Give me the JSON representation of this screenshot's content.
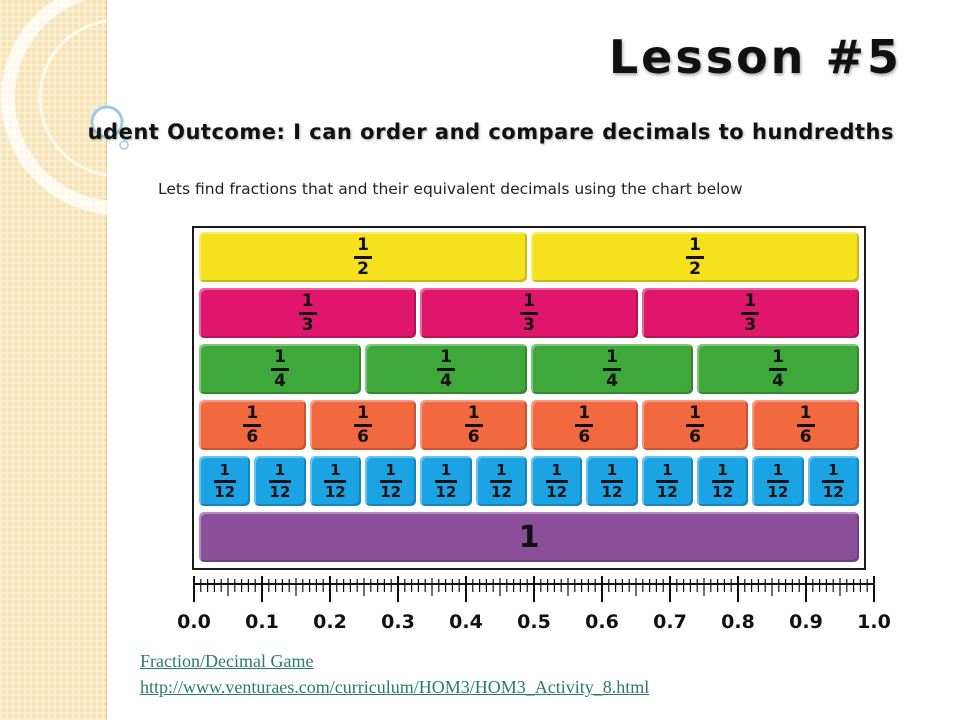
{
  "slide": {
    "title": "Lesson #5",
    "outcome": "udent Outcome: I can order and compare decimals to hundredths",
    "intro": "Lets find fractions that and their equivalent decimals using the chart below"
  },
  "fraction_chart": {
    "rows": [
      {
        "denominator": "2",
        "count": 2,
        "color": "#f5e11c"
      },
      {
        "denominator": "3",
        "count": 3,
        "color": "#e0166c"
      },
      {
        "denominator": "4",
        "count": 4,
        "color": "#3fa83a"
      },
      {
        "denominator": "6",
        "count": 6,
        "color": "#f2683f"
      },
      {
        "denominator": "12",
        "count": 12,
        "color": "#1ba3e3"
      }
    ],
    "numerator": "1",
    "whole": {
      "label": "1",
      "color": "#8b4f9a"
    },
    "ruler_labels": [
      "0.0",
      "0.1",
      "0.2",
      "0.3",
      "0.4",
      "0.5",
      "0.6",
      "0.7",
      "0.8",
      "0.9",
      "1.0"
    ],
    "ruler_minor_divisions": 100
  },
  "links": {
    "game_label": "Fraction/Decimal Game",
    "url_label": "http://www.venturaes.com/curriculum/HOM3/HOM3_Activity_8.html"
  },
  "colors": {
    "stripe": "#f7e3b4",
    "link": "#2a7a6e",
    "circle_accent": "#9ec9e8"
  }
}
